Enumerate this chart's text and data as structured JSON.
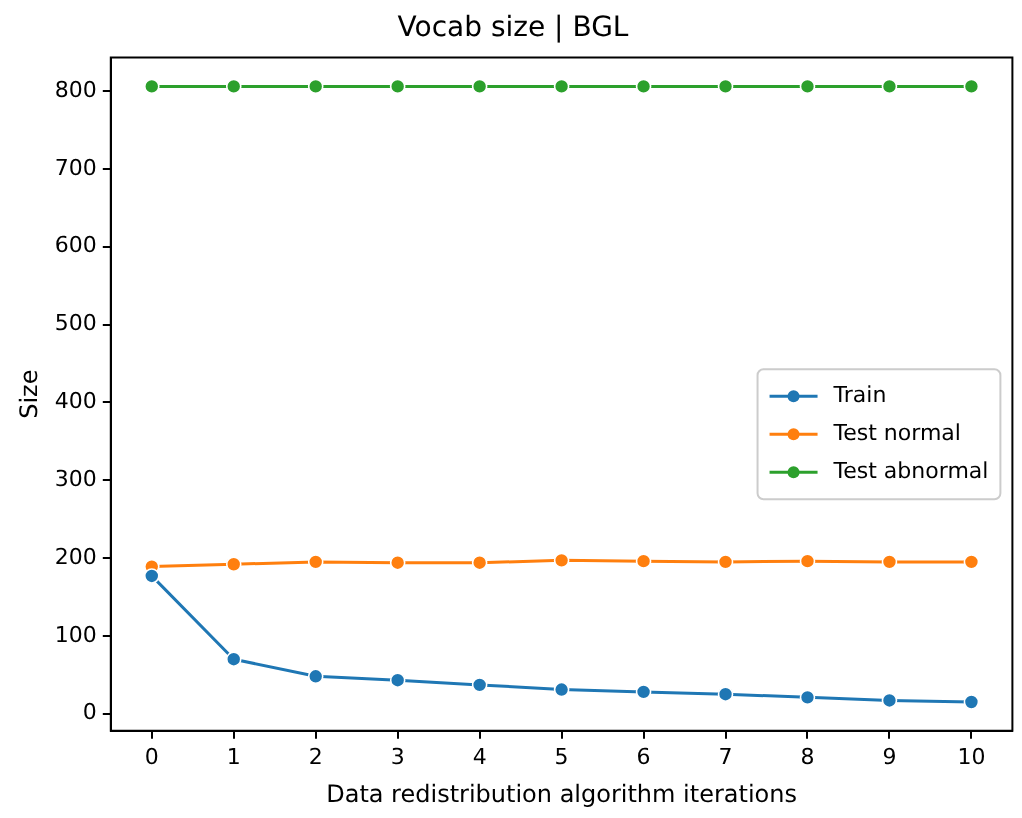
{
  "chart_data": {
    "type": "line",
    "title": "Vocab size | BGL",
    "xlabel": "Data redistribution algorithm iterations",
    "ylabel": "Size",
    "x": [
      0,
      1,
      2,
      3,
      4,
      5,
      6,
      7,
      8,
      9,
      10
    ],
    "series": [
      {
        "name": "Train",
        "color": "#1f77b4",
        "values": [
          177,
          70,
          48,
          43,
          37,
          31,
          28,
          25,
          21,
          17,
          15
        ]
      },
      {
        "name": "Test normal",
        "color": "#ff7f0e",
        "values": [
          189,
          192,
          195,
          194,
          194,
          197,
          196,
          195,
          196,
          195,
          195
        ]
      },
      {
        "name": "Test abnormal",
        "color": "#2ca02c",
        "values": [
          806,
          806,
          806,
          806,
          806,
          806,
          806,
          806,
          806,
          806,
          806
        ]
      }
    ],
    "xlim": [
      -0.5,
      10.5
    ],
    "xticks": [
      0,
      1,
      2,
      3,
      4,
      5,
      6,
      7,
      8,
      9,
      10
    ],
    "ylim": [
      -22,
      843
    ],
    "yticks": [
      0,
      100,
      200,
      300,
      400,
      500,
      600,
      700,
      800
    ],
    "legend": "right",
    "marker": "circle",
    "line_style": "solid",
    "grid": false
  }
}
